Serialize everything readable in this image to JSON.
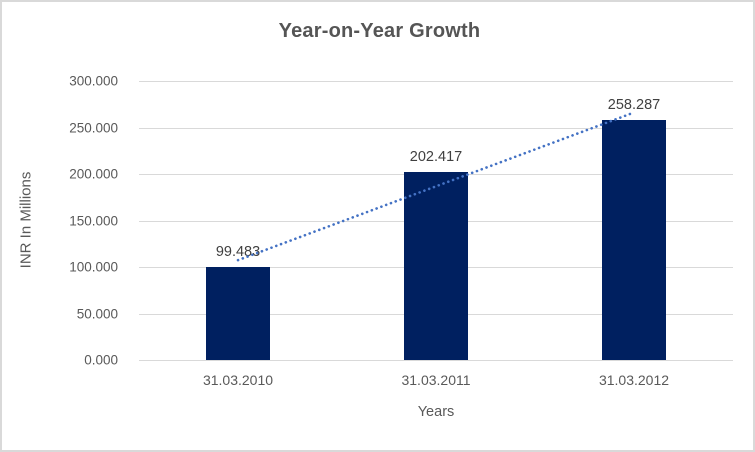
{
  "chart_data": {
    "type": "bar",
    "title": "Year-on-Year Growth",
    "xlabel": "Years",
    "ylabel": "INR In Millions",
    "categories": [
      "31.03.2010",
      "31.03.2011",
      "31.03.2012"
    ],
    "values": [
      99.483,
      202.417,
      258.287
    ],
    "data_labels": [
      "99.483",
      "202.417",
      "258.287"
    ],
    "y_ticks": [
      "0.000",
      "50.000",
      "100.000",
      "150.000",
      "200.000",
      "250.000",
      "300.000"
    ],
    "ylim": [
      0,
      300
    ],
    "y_step": 50,
    "grid": true,
    "legend": "none",
    "bar_color": "#002060",
    "trendline": {
      "style": "dotted",
      "color": "#4472C4",
      "endpoint_values": [
        107.33,
        266.13
      ],
      "endpoint_category_index": [
        0,
        2
      ]
    },
    "colors": {
      "gridline": "#d9d9d9",
      "chart_border": "#d9d9d9",
      "title_text": "#555555",
      "tick_text": "#595959",
      "data_label_text": "#404040"
    }
  }
}
